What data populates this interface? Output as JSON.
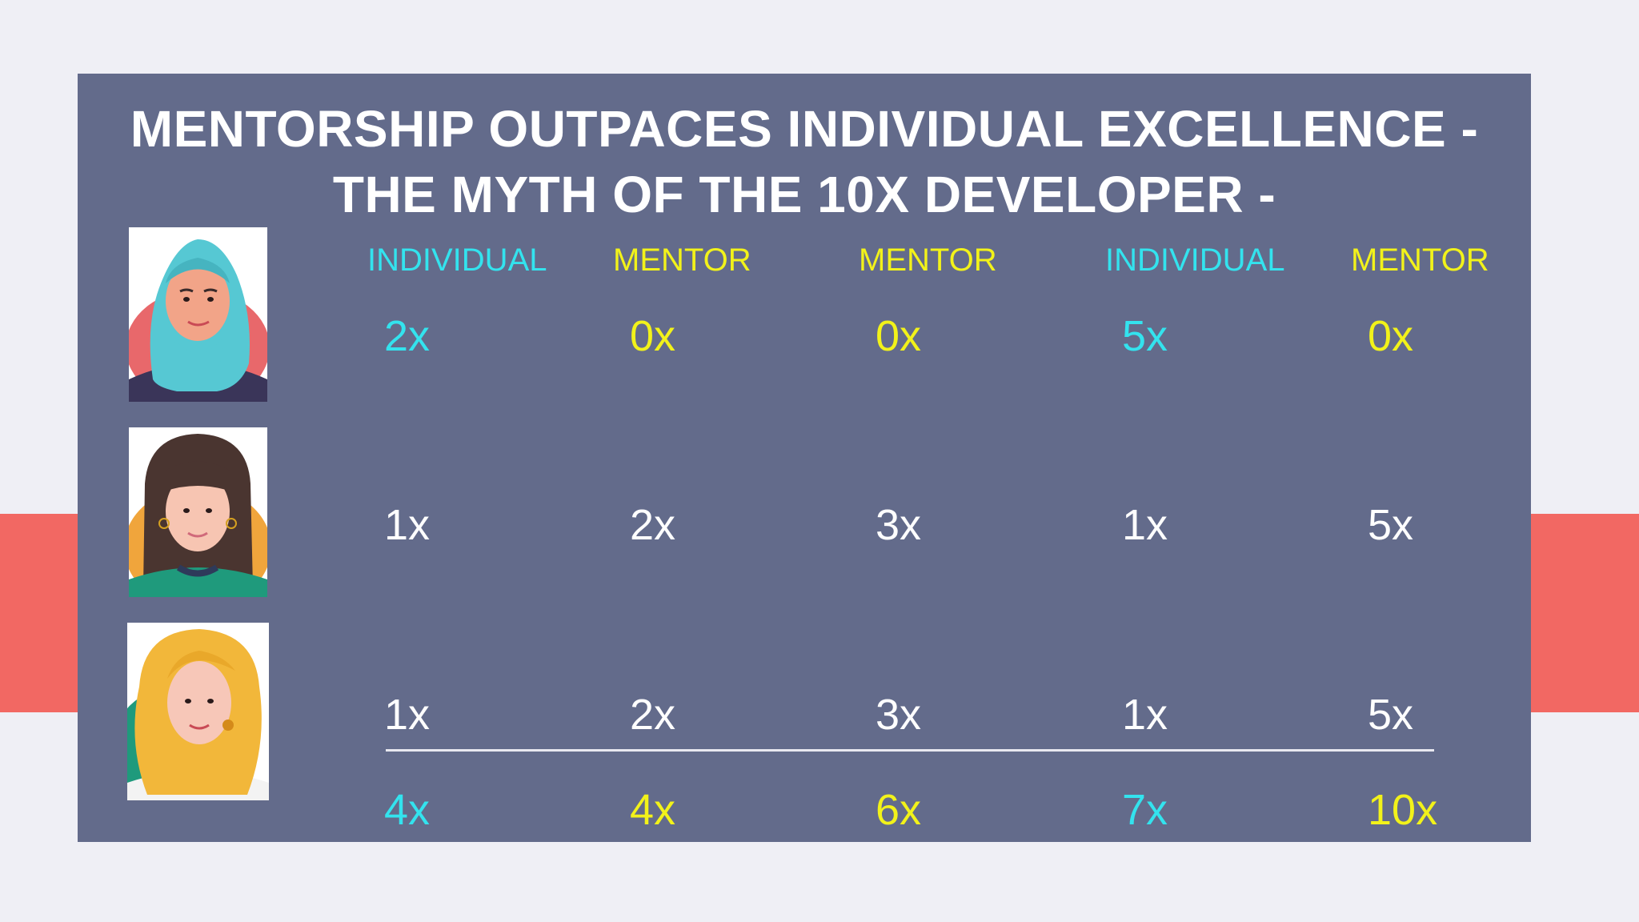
{
  "slide": {
    "title_line1": "MENTORSHIP OUTPACES INDIVIDUAL EXCELLENCE -",
    "title_line2": "THE MYTH OF THE 10X DEVELOPER -"
  },
  "columns": [
    {
      "label": "INDIVIDUAL",
      "role": "individual"
    },
    {
      "label": "MENTOR",
      "role": "mentor"
    },
    {
      "label": "MENTOR",
      "role": "mentor"
    },
    {
      "label": "INDIVIDUAL",
      "role": "individual"
    },
    {
      "label": "MENTOR",
      "role": "mentor"
    }
  ],
  "rows": [
    {
      "avatar": "woman-hijab-avatar",
      "values": [
        "2x",
        "0x",
        "0x",
        "5x",
        "0x"
      ]
    },
    {
      "avatar": "woman-dark-hair-avatar",
      "values": [
        "1x",
        "2x",
        "3x",
        "1x",
        "5x"
      ]
    },
    {
      "avatar": "woman-blonde-avatar",
      "values": [
        "1x",
        "2x",
        "3x",
        "1x",
        "5x"
      ]
    }
  ],
  "totals": [
    "4x",
    "4x",
    "6x",
    "7x",
    "10x"
  ],
  "colors": {
    "individual": "#33e3ee",
    "mentor": "#f2f21a",
    "panel": "#636b8b",
    "band": "#f26863"
  }
}
